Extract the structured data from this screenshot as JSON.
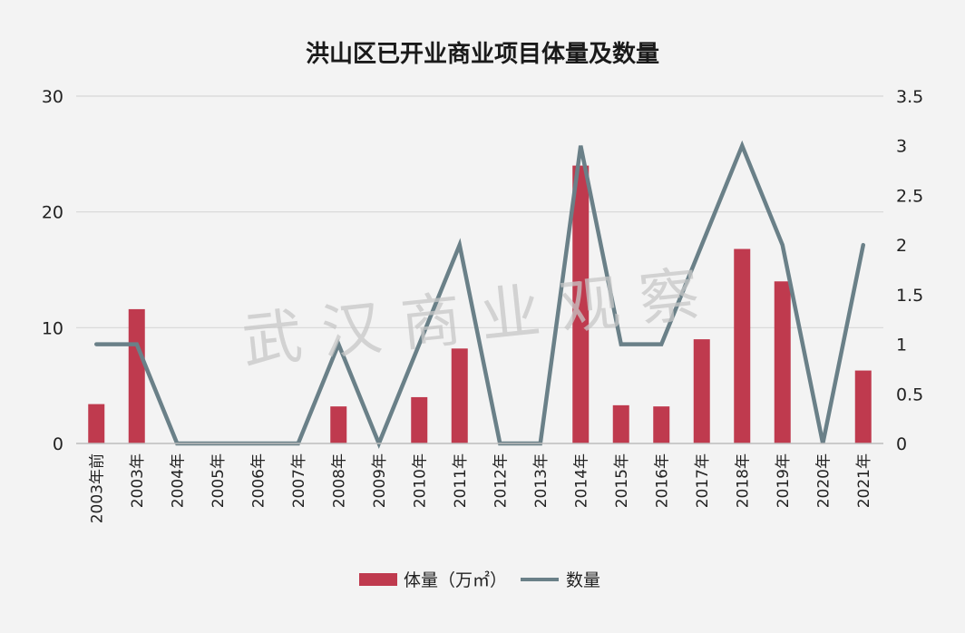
{
  "chart_data": {
    "type": "bar+line",
    "title": "洪山区已开业商业项目体量及数量",
    "watermark": "武汉商业观察",
    "categories": [
      "2003年前",
      "2003年",
      "2004年",
      "2005年",
      "2006年",
      "2007年",
      "2008年",
      "2009年",
      "2010年",
      "2011年",
      "2012年",
      "2013年",
      "2014年",
      "2015年",
      "2016年",
      "2017年",
      "2018年",
      "2019年",
      "2020年",
      "2021年"
    ],
    "series": [
      {
        "name": "体量（万㎡）",
        "type": "bar",
        "axis": "left",
        "color": "#bf3a4e",
        "values": [
          3.4,
          11.6,
          0,
          0,
          0,
          0,
          3.2,
          0,
          4.0,
          8.2,
          0,
          0,
          24.0,
          3.3,
          3.2,
          9.0,
          16.8,
          14.0,
          0,
          6.3
        ]
      },
      {
        "name": "数量",
        "type": "line",
        "axis": "right",
        "color": "#6a8088",
        "values": [
          1,
          1,
          0,
          0,
          0,
          0,
          1,
          0,
          1,
          2,
          0,
          0,
          3,
          1,
          1,
          2,
          3,
          2,
          0,
          2
        ]
      }
    ],
    "y_left": {
      "ticks": [
        "0",
        "10",
        "20",
        "30"
      ],
      "min": 0,
      "max": 30
    },
    "y_right": {
      "ticks": [
        "0",
        "0.5",
        "1",
        "1.5",
        "2",
        "2.5",
        "3",
        "3.5"
      ],
      "min": 0,
      "max": 3.5
    },
    "grid": true,
    "legend_position": "bottom"
  }
}
